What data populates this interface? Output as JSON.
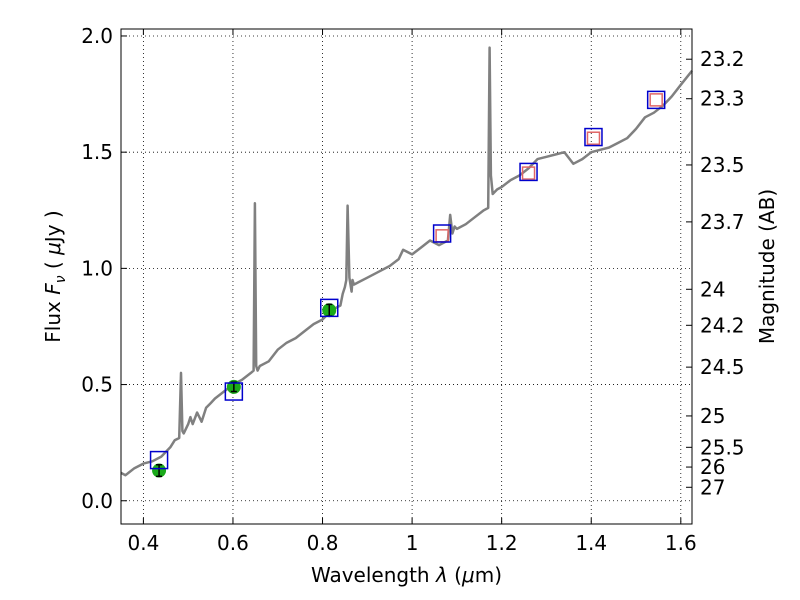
{
  "chart_data": {
    "type": "scatter",
    "title": "",
    "xlabel": "Wavelength  λ (μm)",
    "ylabel": "Flux  F_ν  ( μJy )",
    "ylabel_parts": {
      "pre": "Flux  ",
      "F": "F",
      "nu": "ν",
      "mid": "  ( ",
      "mu": "μ",
      "post": "Jy )"
    },
    "xlabel_parts": {
      "pre": "Wavelength  ",
      "lambda": "λ",
      "mid": " (",
      "mu": "μ",
      "post": "m)"
    },
    "y2label": "Magnitude (AB)",
    "xlim": [
      0.35,
      1.625
    ],
    "ylim": [
      -0.1,
      2.03
    ],
    "grid": true,
    "xticks": [
      0.4,
      0.6,
      0.8,
      1.0,
      1.2,
      1.4,
      1.6
    ],
    "xtick_labels": [
      "0.4",
      "0.6",
      "0.8",
      "1",
      "1.2",
      "1.4",
      "1.6"
    ],
    "yticks": [
      0.0,
      0.5,
      1.0,
      1.5,
      2.0
    ],
    "ytick_labels": [
      "0.0",
      "0.5",
      "1.0",
      "1.5",
      "2.0"
    ],
    "y2ticks": [
      {
        "label": "23.2",
        "flux": 1.9
      },
      {
        "label": "23.3",
        "flux": 1.73
      },
      {
        "label": "23.5",
        "flux": 1.445
      },
      {
        "label": "23.7",
        "flux": 1.2
      },
      {
        "label": "24",
        "flux": 0.91
      },
      {
        "label": "24.2",
        "flux": 0.755
      },
      {
        "label": "24.5",
        "flux": 0.575
      },
      {
        "label": "25",
        "flux": 0.365
      },
      {
        "label": "25.5",
        "flux": 0.23
      },
      {
        "label": "26",
        "flux": 0.145
      },
      {
        "label": "27",
        "flux": 0.058
      }
    ],
    "colors": {
      "spectrum": "#808080",
      "model_box": "#0000cc",
      "observed_box": "#e06666",
      "photometry": "#1aaa1a"
    },
    "series": [
      {
        "role": "spectrum",
        "x": [
          0.35,
          0.36,
          0.38,
          0.4,
          0.42,
          0.44,
          0.46,
          0.47,
          0.48,
          0.484,
          0.487,
          0.49,
          0.5,
          0.505,
          0.51,
          0.52,
          0.53,
          0.54,
          0.55,
          0.56,
          0.58,
          0.6,
          0.62,
          0.64,
          0.646,
          0.649,
          0.652,
          0.655,
          0.66,
          0.68,
          0.7,
          0.72,
          0.74,
          0.76,
          0.78,
          0.8,
          0.82,
          0.84,
          0.845,
          0.85,
          0.853,
          0.856,
          0.86,
          0.865,
          0.867,
          0.87,
          0.88,
          0.9,
          0.93,
          0.95,
          0.97,
          0.98,
          1.0,
          1.02,
          1.04,
          1.06,
          1.08,
          1.085,
          1.09,
          1.095,
          1.1,
          1.12,
          1.14,
          1.16,
          1.17,
          1.173,
          1.176,
          1.18,
          1.19,
          1.2,
          1.22,
          1.24,
          1.26,
          1.28,
          1.3,
          1.32,
          1.34,
          1.36,
          1.38,
          1.4,
          1.42,
          1.44,
          1.46,
          1.48,
          1.5,
          1.52,
          1.54,
          1.56,
          1.58,
          1.6,
          1.625
        ],
        "y": [
          0.12,
          0.11,
          0.14,
          0.16,
          0.17,
          0.19,
          0.23,
          0.26,
          0.27,
          0.55,
          0.3,
          0.29,
          0.33,
          0.36,
          0.33,
          0.38,
          0.34,
          0.4,
          0.42,
          0.44,
          0.47,
          0.5,
          0.52,
          0.55,
          0.56,
          1.28,
          0.58,
          0.56,
          0.58,
          0.6,
          0.65,
          0.68,
          0.7,
          0.73,
          0.76,
          0.78,
          0.82,
          0.84,
          0.89,
          0.92,
          0.95,
          1.27,
          0.96,
          0.9,
          0.95,
          0.93,
          0.94,
          0.96,
          0.99,
          1.01,
          1.04,
          1.08,
          1.06,
          1.09,
          1.12,
          1.1,
          1.12,
          1.23,
          1.15,
          1.18,
          1.17,
          1.19,
          1.22,
          1.25,
          1.26,
          1.95,
          1.4,
          1.32,
          1.34,
          1.35,
          1.38,
          1.4,
          1.43,
          1.47,
          1.48,
          1.49,
          1.5,
          1.45,
          1.47,
          1.5,
          1.51,
          1.52,
          1.54,
          1.56,
          1.6,
          1.65,
          1.67,
          1.7,
          1.74,
          1.79,
          1.85
        ]
      },
      {
        "role": "model_boxes",
        "x": [
          0.435,
          0.602,
          0.815,
          1.067,
          1.26,
          1.405,
          1.545
        ],
        "y": [
          0.175,
          0.47,
          0.83,
          1.15,
          1.415,
          1.565,
          1.725
        ]
      },
      {
        "role": "observed_boxes",
        "x": [
          1.067,
          1.26,
          1.405,
          1.545
        ],
        "y": [
          1.14,
          1.41,
          1.56,
          1.725
        ]
      },
      {
        "role": "photometry",
        "x": [
          0.435,
          0.602,
          0.815
        ],
        "y": [
          0.13,
          0.49,
          0.82
        ],
        "yerr": [
          0.025,
          0.02,
          0.025
        ]
      }
    ]
  }
}
